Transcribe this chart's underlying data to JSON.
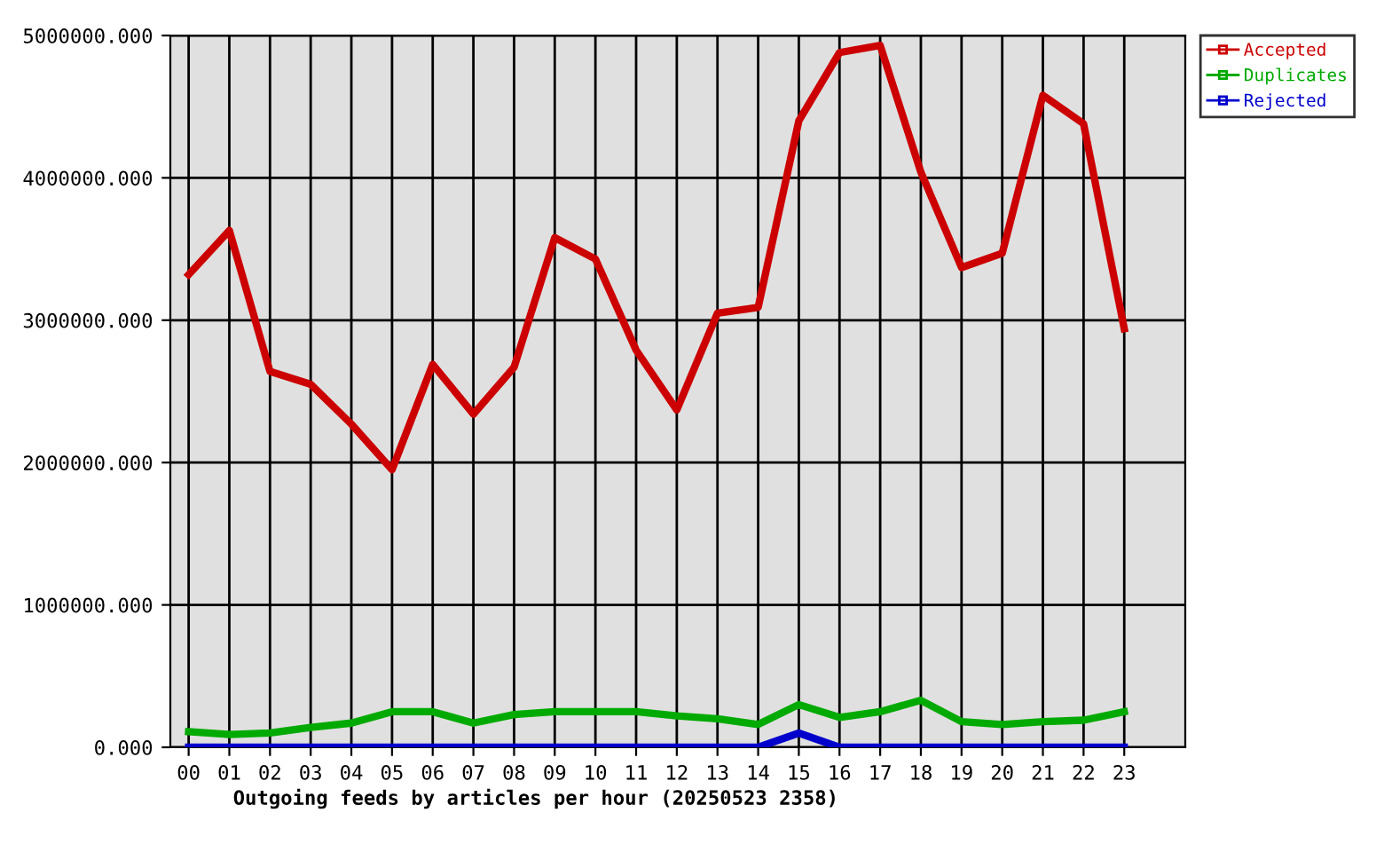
{
  "chart_data": {
    "type": "line",
    "xlabel": "Outgoing feeds by articles per hour (20250523 2358)",
    "categories": [
      "00",
      "01",
      "02",
      "03",
      "04",
      "05",
      "06",
      "07",
      "08",
      "09",
      "10",
      "11",
      "12",
      "13",
      "14",
      "15",
      "16",
      "17",
      "18",
      "19",
      "20",
      "21",
      "22",
      "23"
    ],
    "series": [
      {
        "name": "Accepted",
        "color": "#cc0000",
        "values": [
          3320000,
          3630000,
          2640000,
          2550000,
          2270000,
          1950000,
          2690000,
          2340000,
          2670000,
          3580000,
          3430000,
          2790000,
          2370000,
          3050000,
          3090000,
          4400000,
          4880000,
          4930000,
          4040000,
          3370000,
          3470000,
          4580000,
          4380000,
          2940000
        ]
      },
      {
        "name": "Duplicates",
        "color": "#00aa00",
        "values": [
          110000,
          90000,
          100000,
          140000,
          170000,
          250000,
          250000,
          170000,
          230000,
          250000,
          250000,
          250000,
          220000,
          200000,
          160000,
          300000,
          210000,
          250000,
          330000,
          180000,
          160000,
          180000,
          190000,
          250000
        ]
      },
      {
        "name": "Rejected",
        "color": "#0000cc",
        "values": [
          0,
          0,
          0,
          0,
          0,
          0,
          0,
          0,
          0,
          0,
          0,
          0,
          0,
          0,
          0,
          100000,
          0,
          0,
          0,
          0,
          0,
          0,
          0,
          0
        ]
      }
    ],
    "ylim": [
      0,
      5000000
    ],
    "yticks": [
      {
        "value": 0,
        "label": "0.000"
      },
      {
        "value": 1000000,
        "label": "1000000.000"
      },
      {
        "value": 2000000,
        "label": "2000000.000"
      },
      {
        "value": 3000000,
        "label": "3000000.000"
      },
      {
        "value": 4000000,
        "label": "4000000.000"
      },
      {
        "value": 5000000,
        "label": "5000000.000"
      }
    ],
    "grid": true,
    "legend": "top right",
    "marker": "none",
    "line_style": "solid"
  }
}
